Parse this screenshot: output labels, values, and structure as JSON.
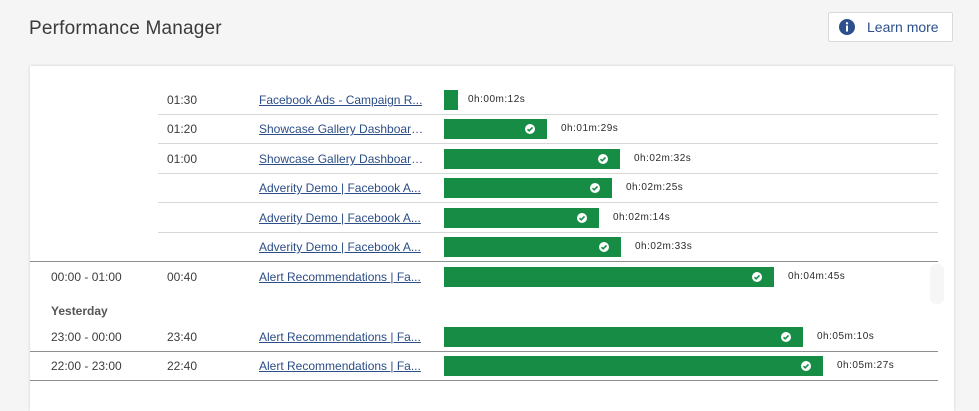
{
  "header": {
    "title": "Performance Manager",
    "learn_more_label": "Learn more",
    "info_icon": "info-circle-icon"
  },
  "colors": {
    "bar": "#178c45",
    "link": "#2c4e86",
    "info": "#2d4f8b"
  },
  "rows": [
    {
      "slot": "",
      "start": "01:30",
      "name": "Facebook Ads - Campaign R...",
      "duration": "0h:00m:12s",
      "seconds": 12,
      "check": false
    },
    {
      "slot": "",
      "start": "01:20",
      "name": "Showcase Gallery Dashboard...",
      "duration": "0h:01m:29s",
      "seconds": 89,
      "check": true
    },
    {
      "slot": "",
      "start": "01:00",
      "name": "Showcase Gallery Dashboard...",
      "duration": "0h:02m:32s",
      "seconds": 152,
      "check": true
    },
    {
      "slot": "",
      "start": "",
      "name": "Adverity Demo | Facebook A...",
      "duration": "0h:02m:25s",
      "seconds": 145,
      "check": true
    },
    {
      "slot": "",
      "start": "",
      "name": "Adverity Demo | Facebook A...",
      "duration": "0h:02m:14s",
      "seconds": 134,
      "check": true
    },
    {
      "slot": "",
      "start": "",
      "name": "Adverity Demo | Facebook A...",
      "duration": "0h:02m:33s",
      "seconds": 153,
      "check": true
    },
    {
      "slot": "00:00 - 01:00",
      "start": "00:40",
      "name": "Alert Recommendations | Fa...",
      "duration": "0h:04m:45s",
      "seconds": 285,
      "check": true
    },
    {
      "slot": "23:00 - 00:00",
      "start": "23:40",
      "name": "Alert Recommendations | Fa...",
      "duration": "0h:05m:10s",
      "seconds": 310,
      "check": true
    },
    {
      "slot": "22:00 - 23:00",
      "start": "22:40",
      "name": "Alert Recommendations | Fa...",
      "duration": "0h:05m:27s",
      "seconds": 327,
      "check": true
    }
  ],
  "group_label": "Yesterday"
}
